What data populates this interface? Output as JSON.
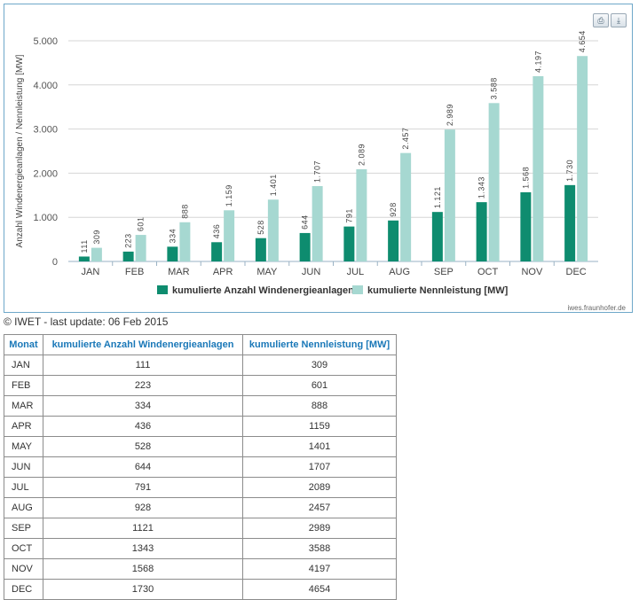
{
  "chart_data": {
    "type": "bar",
    "categories": [
      "JAN",
      "FEB",
      "MAR",
      "APR",
      "MAY",
      "JUN",
      "JUL",
      "AUG",
      "SEP",
      "OCT",
      "NOV",
      "DEC"
    ],
    "series": [
      {
        "name": "kumulierte Anzahl Windenergieanlagen",
        "color": "#0e8c6f",
        "values": [
          111,
          223,
          334,
          436,
          528,
          644,
          791,
          928,
          1121,
          1343,
          1568,
          1730
        ],
        "labels": [
          "111",
          "223",
          "334",
          "436",
          "528",
          "644",
          "791",
          "928",
          "1.121",
          "1.343",
          "1.568",
          "1.730"
        ]
      },
      {
        "name": "kumulierte Nennleistung [MW]",
        "color": "#a6d8d1",
        "values": [
          309,
          601,
          888,
          1159,
          1401,
          1707,
          2089,
          2457,
          2989,
          3588,
          4197,
          4654
        ],
        "labels": [
          "309",
          "601",
          "888",
          "1.159",
          "1.401",
          "1.707",
          "2.089",
          "2.457",
          "2.989",
          "3.588",
          "4.197",
          "4.654"
        ]
      }
    ],
    "ylabel": "Anzahl Windenergieanlagen / Nennleistung [MW]",
    "ylim": [
      0,
      5000
    ],
    "yticks": [
      0,
      1000,
      2000,
      3000,
      4000,
      5000
    ],
    "ytick_labels": [
      "0",
      "1.000",
      "2.000",
      "3.000",
      "4.000",
      "5.000"
    ],
    "grid": true,
    "legend_position": "bottom-center",
    "credit": "iwes.fraunhofer.de"
  },
  "toolbar": {
    "print_icon": "printer-icon",
    "export_icon": "download-icon"
  },
  "copyright": "© IWET - last update: 06 Feb 2015",
  "table": {
    "headers": [
      "Monat",
      "kumulierte Anzahl Windenergieanlagen",
      "kumulierte Nennleistung [MW]"
    ],
    "rows": [
      [
        "JAN",
        "111",
        "309"
      ],
      [
        "FEB",
        "223",
        "601"
      ],
      [
        "MAR",
        "334",
        "888"
      ],
      [
        "APR",
        "436",
        "1159"
      ],
      [
        "MAY",
        "528",
        "1401"
      ],
      [
        "JUN",
        "644",
        "1707"
      ],
      [
        "JUL",
        "791",
        "2089"
      ],
      [
        "AUG",
        "928",
        "2457"
      ],
      [
        "SEP",
        "1121",
        "2989"
      ],
      [
        "OCT",
        "1343",
        "3588"
      ],
      [
        "NOV",
        "1568",
        "4197"
      ],
      [
        "DEC",
        "1730",
        "4654"
      ]
    ]
  }
}
